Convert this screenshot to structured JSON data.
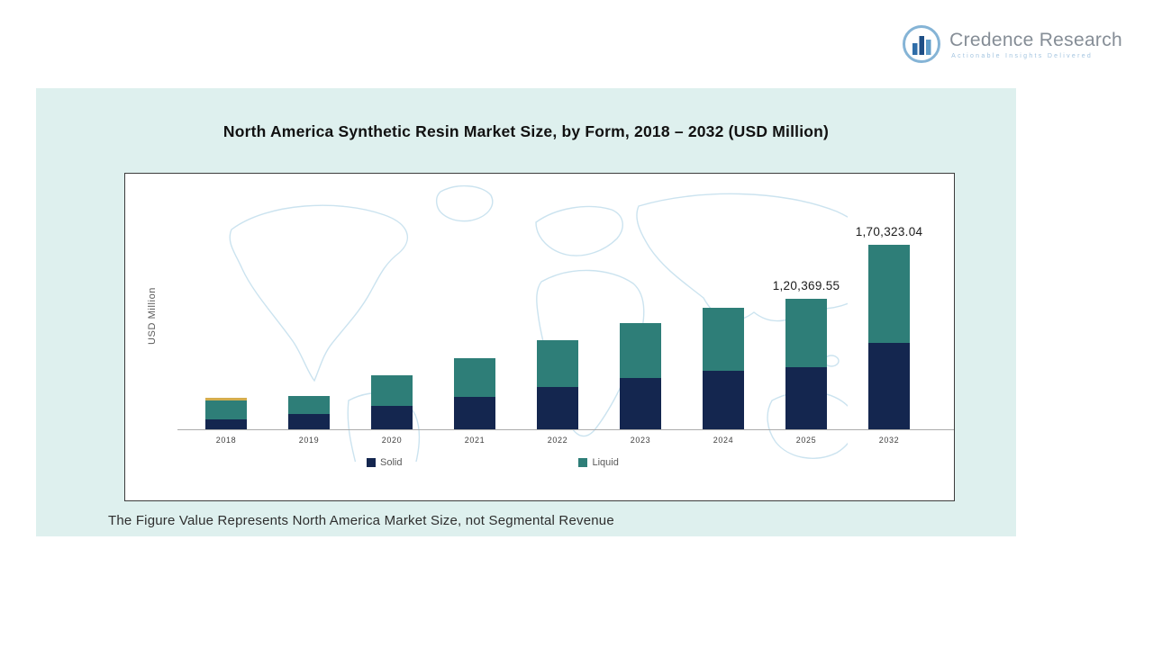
{
  "header": {
    "logo": {
      "brand": "Credence Research",
      "tagline": "Actionable Insights Delivered",
      "icon": "bar-chart-circle-icon"
    }
  },
  "panel": {
    "title": "North America Synthetic Resin Market Size, by Form, 2018 – 2032 (USD Million)",
    "footnote": "The Figure Value Represents North America Market Size, not Segmental Revenue"
  },
  "chart_data": {
    "type": "bar",
    "stacked": true,
    "title": "North America Synthetic Resin Market Size, by Form, 2018 – 2032 (USD Million)",
    "xlabel": "",
    "ylabel": "USD Million",
    "ylim": [
      0,
      180000
    ],
    "grid": false,
    "legend_position": "bottom",
    "categories": [
      "2018",
      "2019",
      "2020",
      "2021",
      "2022",
      "2023",
      "2024",
      "2025",
      "2032"
    ],
    "series": [
      {
        "name": "Solid",
        "color": "#14264f",
        "values": [
          12000,
          14500,
          22000,
          30000,
          39000,
          47000,
          54000,
          57000,
          80000
        ]
      },
      {
        "name": "Liquid",
        "color": "#2e7e78",
        "values": [
          17000,
          16500,
          28000,
          36000,
          43000,
          51000,
          58000,
          63369.55,
          90323.04
        ]
      }
    ],
    "totals_labeled": {
      "2025": "1,20,369.55",
      "2032": "1,70,323.04"
    },
    "bar_top_accent": {
      "category": "2018",
      "color": "#d4ad4e"
    }
  },
  "colors": {
    "panel_background": "#def0ee",
    "solid_navy": "#14264f",
    "liquid_teal": "#2e7e78",
    "map_outline": "#c6e0ee",
    "brand_gray": "#858d96",
    "brand_blue": "#a4c5e0"
  }
}
